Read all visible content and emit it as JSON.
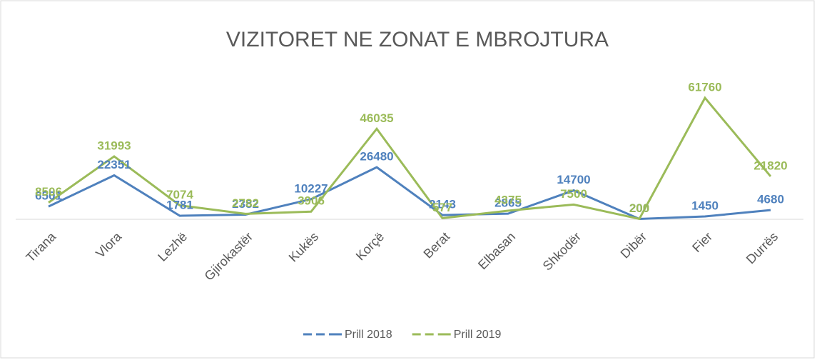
{
  "chart_data": {
    "type": "line",
    "title": "VIZITORET NE ZONAT E MBROJTURA",
    "categories": [
      "Tirana",
      "Vlora",
      "Lezhë",
      "Gjirokastër",
      "Kukës",
      "Korçë",
      "Berat",
      "Elbasan",
      "Shkodër",
      "Dibër",
      "Fier",
      "Durrës"
    ],
    "series": [
      {
        "name": "Prill 2018",
        "color": "#4f81bd",
        "values": [
          6501,
          22351,
          1781,
          2382,
          10227,
          26480,
          2143,
          2865,
          14700,
          200,
          1450,
          4680
        ]
      },
      {
        "name": "Prill 2019",
        "color": "#9bbb59",
        "values": [
          8506,
          31993,
          7074,
          2782,
          3906,
          46035,
          577,
          4375,
          7500,
          200,
          61760,
          21820
        ]
      }
    ],
    "legend": "bottom"
  }
}
